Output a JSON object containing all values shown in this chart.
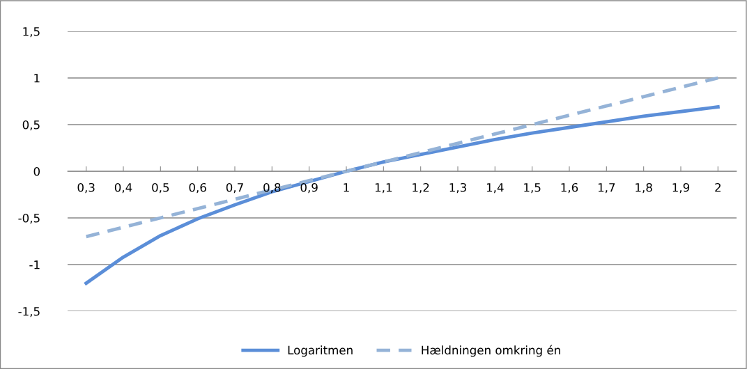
{
  "chart_data": {
    "type": "line",
    "categories": [
      "0,3",
      "0,4",
      "0,5",
      "0,6",
      "0,7",
      "0,8",
      "0,9",
      "1",
      "1,1",
      "1,2",
      "1,3",
      "1,4",
      "1,5",
      "1,6",
      "1,7",
      "1,8",
      "1,9",
      "2"
    ],
    "series": [
      {
        "name": "Logaritmen",
        "color": "#5b8ed8",
        "line_style": "solid",
        "values": [
          -1.2,
          -0.92,
          -0.69,
          -0.51,
          -0.36,
          -0.22,
          -0.11,
          0,
          0.1,
          0.18,
          0.26,
          0.34,
          0.41,
          0.47,
          0.53,
          0.59,
          0.64,
          0.69
        ]
      },
      {
        "name": "Hældningen omkring én",
        "color": "#95b3d7",
        "line_style": "dashed",
        "values": [
          -0.7,
          -0.6,
          -0.5,
          -0.4,
          -0.3,
          -0.2,
          -0.1,
          0,
          0.1,
          0.2,
          0.3,
          0.4,
          0.5,
          0.6,
          0.7,
          0.8,
          0.9,
          1.0
        ]
      }
    ],
    "ylim": [
      -1.5,
      1.5
    ],
    "yticks": [
      {
        "value": -1.5,
        "label": "-1,5"
      },
      {
        "value": -1,
        "label": "-1"
      },
      {
        "value": -0.5,
        "label": "-0,5"
      },
      {
        "value": 0,
        "label": "0"
      },
      {
        "value": 0.5,
        "label": "0,5"
      },
      {
        "value": 1,
        "label": "1"
      },
      {
        "value": 1.5,
        "label": "1,5"
      }
    ],
    "grid": "y",
    "legend": "bottom",
    "marker": "none"
  }
}
